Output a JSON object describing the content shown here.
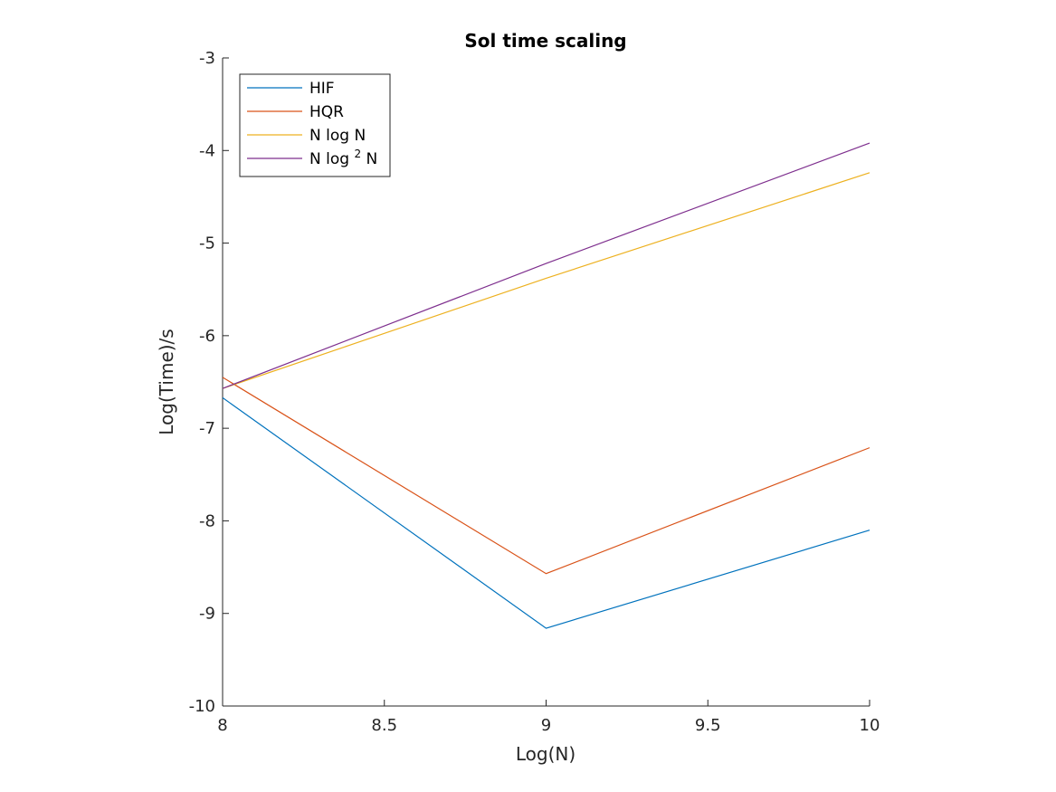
{
  "chart_data": {
    "type": "line",
    "title": "Sol time scaling",
    "xlabel": "Log(N)",
    "ylabel": "Log(Time)/s",
    "xlim": [
      8,
      10
    ],
    "ylim": [
      -10,
      -3
    ],
    "xticks": [
      8,
      8.5,
      9,
      9.5,
      10
    ],
    "xtick_labels": [
      "8",
      "8.5",
      "9",
      "9.5",
      "10"
    ],
    "yticks": [
      -10,
      -9,
      -8,
      -7,
      -6,
      -5,
      -4,
      -3
    ],
    "ytick_labels": [
      "-10",
      "-9",
      "-8",
      "-7",
      "-6",
      "-5",
      "-4",
      "-3"
    ],
    "grid": false,
    "box": "left-bottom",
    "legend_position": "top-left",
    "x": [
      8,
      9,
      10
    ],
    "series": [
      {
        "name": "HIF",
        "color": "#0072BD",
        "values": [
          -6.67,
          -9.16,
          -8.1
        ]
      },
      {
        "name": "HQR",
        "color": "#D95319",
        "values": [
          -6.45,
          -8.57,
          -7.21
        ]
      },
      {
        "name": "N log N",
        "color": "#EDB120",
        "values": [
          -6.57,
          -5.38,
          -4.24
        ]
      },
      {
        "name": "N log^2 N",
        "color": "#7E2F8E",
        "values": [
          -6.57,
          -5.22,
          -3.92
        ]
      }
    ],
    "legend": [
      {
        "label": "HIF"
      },
      {
        "label": "HQR"
      },
      {
        "label": "N log N"
      },
      {
        "label_main": "N log",
        "label_sup": "2",
        "label_tail": "N"
      }
    ]
  }
}
